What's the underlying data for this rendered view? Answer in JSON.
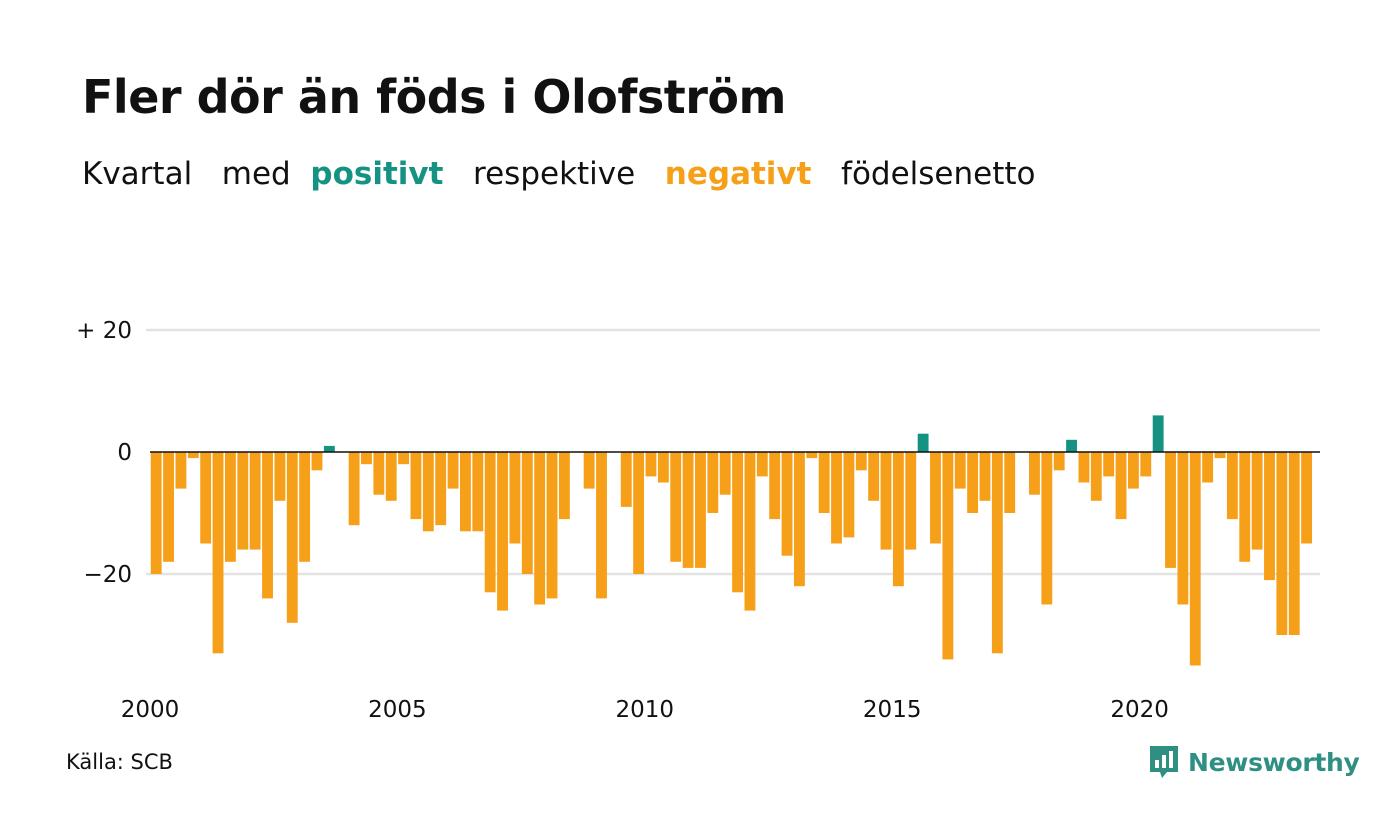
{
  "title": "Fler dör än föds i Olofström",
  "subtitle": {
    "prefix": "Kvartal",
    "word_med": "med",
    "positive_word": "positivt",
    "middle": "respektive",
    "negative_word": "negativt",
    "suffix": "födelsenetto"
  },
  "source": "Källa: SCB",
  "brand": {
    "name": "Newsworthy",
    "icon": "bar-chart-speech-bubble-icon"
  },
  "colors": {
    "positive": "#149383",
    "negative": "#f6a01a",
    "grid": "#e3e3e3",
    "zero_line": "#111111",
    "brand": "#2f8f83"
  },
  "chart_data": {
    "type": "bar",
    "title": "Fler dör än föds i Olofström",
    "xlabel": "",
    "ylabel": "",
    "x_start_year": 2000,
    "periods_per_year": 4,
    "ylim": [
      -40,
      20
    ],
    "y_ticks": [
      {
        "value": 20,
        "label": "+ 20"
      },
      {
        "value": 0,
        "label": "0"
      },
      {
        "value": -20,
        "label": "−20"
      }
    ],
    "x_ticks": [
      {
        "year": 2000,
        "label": "2000"
      },
      {
        "year": 2005,
        "label": "2005"
      },
      {
        "year": 2010,
        "label": "2010"
      },
      {
        "year": 2015,
        "label": "2015"
      },
      {
        "year": 2020,
        "label": "2020"
      }
    ],
    "grid": true,
    "values": [
      -20,
      -18,
      -6,
      -1,
      -15,
      -33,
      -18,
      -16,
      -16,
      -24,
      -8,
      -28,
      -18,
      -3,
      1,
      0,
      -12,
      -2,
      -7,
      -8,
      -2,
      -11,
      -13,
      -12,
      -6,
      -13,
      -13,
      -23,
      -26,
      -15,
      -20,
      -25,
      -24,
      -11,
      0,
      -6,
      -24,
      0,
      -9,
      -20,
      -4,
      -5,
      -18,
      -19,
      -19,
      -10,
      -7,
      -23,
      -26,
      -4,
      -11,
      -17,
      -22,
      -1,
      -10,
      -15,
      -14,
      -3,
      -8,
      -16,
      -22,
      -16,
      3,
      -15,
      -34,
      -6,
      -10,
      -8,
      -33,
      -10,
      0,
      -7,
      -25,
      -3,
      2,
      -5,
      -8,
      -4,
      -11,
      -6,
      -4,
      6,
      -19,
      -25,
      -35,
      -5,
      -1,
      -11,
      -18,
      -16,
      -21,
      -30,
      -30,
      -15
    ]
  }
}
